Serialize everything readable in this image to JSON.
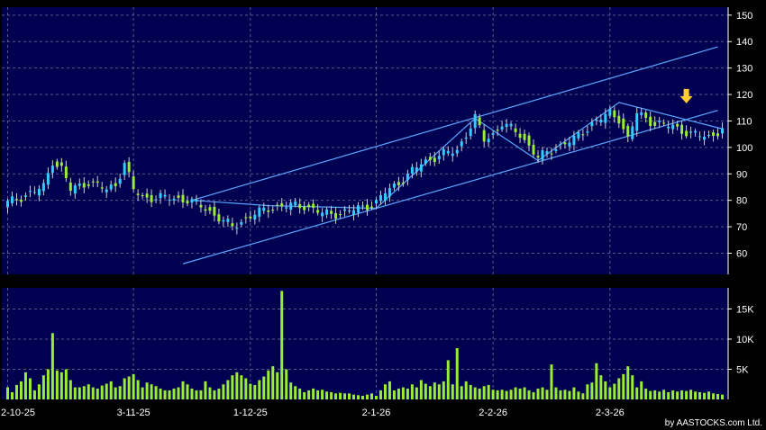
{
  "chart_data": [
    {
      "type": "candlestick",
      "name": "price",
      "y_ticks": [
        60,
        70,
        80,
        90,
        100,
        110,
        120,
        130,
        140,
        150
      ],
      "ylim": [
        52,
        153
      ],
      "x_ticks": [
        "2-10-25",
        "3-11-25",
        "1-12-25",
        "2-1-26",
        "2-2-26",
        "2-3-26"
      ],
      "x_tick_index": [
        0,
        28,
        54,
        82,
        108,
        134
      ],
      "n_bars": 160,
      "grid": true,
      "colors": {
        "up": "#33ccff",
        "down": "#99ee33",
        "channel": "#5aa7ff",
        "marker": "#ffcc33"
      },
      "anchors": [
        [
          0,
          79
        ],
        [
          8,
          85
        ],
        [
          10,
          95
        ],
        [
          12,
          92
        ],
        [
          14,
          84
        ],
        [
          18,
          87
        ],
        [
          22,
          84
        ],
        [
          24,
          86
        ],
        [
          26,
          94
        ],
        [
          28,
          84
        ],
        [
          30,
          81
        ],
        [
          36,
          81
        ],
        [
          40,
          80
        ],
        [
          44,
          77
        ],
        [
          48,
          72
        ],
        [
          50,
          70
        ],
        [
          54,
          74
        ],
        [
          58,
          77
        ],
        [
          62,
          78
        ],
        [
          66,
          78
        ],
        [
          70,
          75
        ],
        [
          74,
          75
        ],
        [
          78,
          77
        ],
        [
          82,
          79
        ],
        [
          84,
          83
        ],
        [
          88,
          88
        ],
        [
          92,
          94
        ],
        [
          96,
          97
        ],
        [
          100,
          99
        ],
        [
          104,
          111
        ],
        [
          106,
          103
        ],
        [
          108,
          105
        ],
        [
          110,
          109
        ],
        [
          114,
          105
        ],
        [
          118,
          96
        ],
        [
          122,
          100
        ],
        [
          126,
          103
        ],
        [
          130,
          109
        ],
        [
          134,
          113
        ],
        [
          136,
          111
        ],
        [
          138,
          103
        ],
        [
          140,
          113
        ],
        [
          144,
          109
        ],
        [
          148,
          108
        ],
        [
          152,
          105
        ],
        [
          156,
          104
        ],
        [
          159,
          107
        ]
      ],
      "channel_lines": [
        {
          "from": [
            41,
            80
          ],
          "to": [
            158,
            138
          ]
        },
        {
          "from": [
            39,
            56
          ],
          "to": [
            158,
            114
          ]
        }
      ],
      "pattern_lines": [
        [
          [
            41,
            80
          ],
          [
            58,
            78
          ],
          [
            82,
            77
          ],
          [
            104,
            111
          ],
          [
            118,
            95
          ],
          [
            136,
            117
          ],
          [
            159,
            107
          ]
        ]
      ],
      "marker_index": 151,
      "marker": "down-arrow"
    },
    {
      "type": "bar",
      "name": "volume",
      "y_ticks_labels": [
        "5K",
        "10K",
        "15K"
      ],
      "y_ticks": [
        5,
        10,
        15
      ],
      "ylim": [
        0,
        18.5
      ],
      "unit": "K",
      "values": [
        2.0,
        1.2,
        2.4,
        3.0,
        4.5,
        3.5,
        1.5,
        2.5,
        4.0,
        5.0,
        11.0,
        4.8,
        4.5,
        5.0,
        3.2,
        2.0,
        2.0,
        2.2,
        2.5,
        2.0,
        1.8,
        2.3,
        2.6,
        3.0,
        2.0,
        2.2,
        3.5,
        3.8,
        4.2,
        3.2,
        2.0,
        2.8,
        2.5,
        2.2,
        1.8,
        1.5,
        1.5,
        1.8,
        2.0,
        3.0,
        2.5,
        1.8,
        1.5,
        1.5,
        3.0,
        2.0,
        1.5,
        1.8,
        2.5,
        3.2,
        4.0,
        4.5,
        4.0,
        3.5,
        2.6,
        2.4,
        3.2,
        3.8,
        4.8,
        5.5,
        4.5,
        18.0,
        5.0,
        2.8,
        2.2,
        1.8,
        1.2,
        1.5,
        1.8,
        1.5,
        1.6,
        1.3,
        1.2,
        1.0,
        1.1,
        1.0,
        1.0,
        0.8,
        0.7,
        0.6,
        0.8,
        1.0,
        0.6,
        1.5,
        2.5,
        3.0,
        1.5,
        1.8,
        2.0,
        1.8,
        2.5,
        2.0,
        3.2,
        2.6,
        2.2,
        2.8,
        2.5,
        3.0,
        6.5,
        2.5,
        8.5,
        2.2,
        3.0,
        2.4,
        2.0,
        1.8,
        2.2,
        2.4,
        1.6,
        1.5,
        1.6,
        1.4,
        1.6,
        2.0,
        1.8,
        2.0,
        1.5,
        1.2,
        1.8,
        2.0,
        1.6,
        5.8,
        2.0,
        1.5,
        1.6,
        1.4,
        2.0,
        1.3,
        1.0,
        2.5,
        2.8,
        6.0,
        4.0,
        3.0,
        2.0,
        2.6,
        3.5,
        4.2,
        5.5,
        4.0,
        2.0,
        3.0,
        1.8,
        1.4,
        1.5,
        1.3,
        1.6,
        1.2,
        1.5,
        1.3,
        1.5,
        1.4,
        1.6,
        1.3,
        1.2,
        1.1,
        1.3,
        1.0,
        0.9,
        0.8
      ]
    }
  ],
  "credit": "by AASTOCKS.com Ltd."
}
